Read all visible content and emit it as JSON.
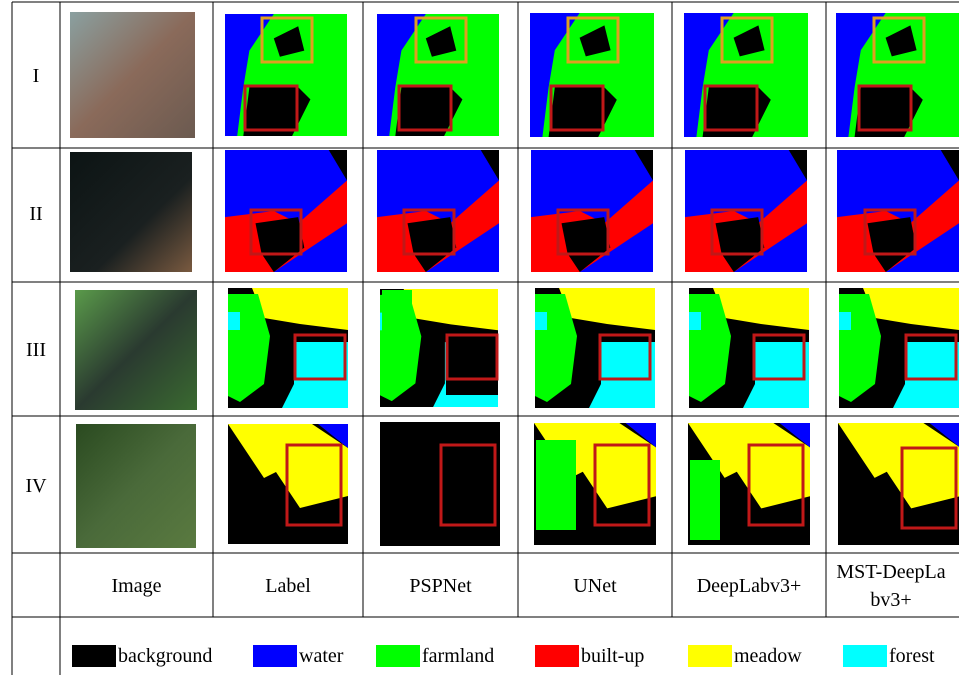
{
  "rows": [
    {
      "label": "I"
    },
    {
      "label": "II"
    },
    {
      "label": "III"
    },
    {
      "label": "IV"
    }
  ],
  "columns": [
    "Image",
    "Label",
    "PSPNet",
    "UNet",
    "DeepLabv3+",
    "MST-DeepLabv3+"
  ],
  "legend": [
    {
      "label": "background",
      "color": "#000000"
    },
    {
      "label": "water",
      "color": "#0000ff"
    },
    {
      "label": "farmland",
      "color": "#00ff00"
    },
    {
      "label": "built-up",
      "color": "#ff0000"
    },
    {
      "label": "meadow",
      "color": "#ffff00"
    },
    {
      "label": "forest",
      "color": "#00ffff"
    }
  ]
}
